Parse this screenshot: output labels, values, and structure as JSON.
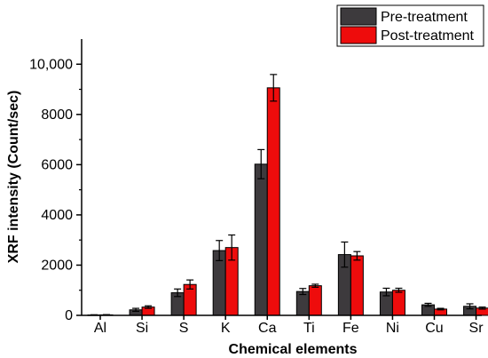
{
  "chart_data": {
    "type": "bar",
    "title": "",
    "xlabel": "Chemical elements",
    "ylabel": "XRF intensity (Count/sec)",
    "categories": [
      "Al",
      "Si",
      "S",
      "K",
      "Ca",
      "Ti",
      "Fe",
      "Ni",
      "Cu",
      "Sr"
    ],
    "series": [
      {
        "name": "Pre-treatment",
        "color": "#3d3a3d",
        "values": [
          15,
          220,
          900,
          2580,
          6020,
          950,
          2420,
          930,
          420,
          360
        ],
        "errors": [
          10,
          60,
          150,
          400,
          580,
          120,
          500,
          150,
          60,
          100
        ]
      },
      {
        "name": "Post-treatment",
        "color": "#ee0c0c",
        "values": [
          20,
          330,
          1230,
          2700,
          9060,
          1180,
          2370,
          1000,
          250,
          290
        ],
        "errors": [
          10,
          50,
          180,
          500,
          530,
          60,
          170,
          80,
          30,
          40
        ]
      }
    ],
    "ylim": [
      0,
      11000
    ],
    "yticks": [
      0,
      2000,
      4000,
      6000,
      8000,
      10000
    ],
    "ytick_labels": [
      "0",
      "2000",
      "4000",
      "6000",
      "8000",
      "10,000"
    ],
    "grid": false,
    "legend_position": "top-right"
  }
}
